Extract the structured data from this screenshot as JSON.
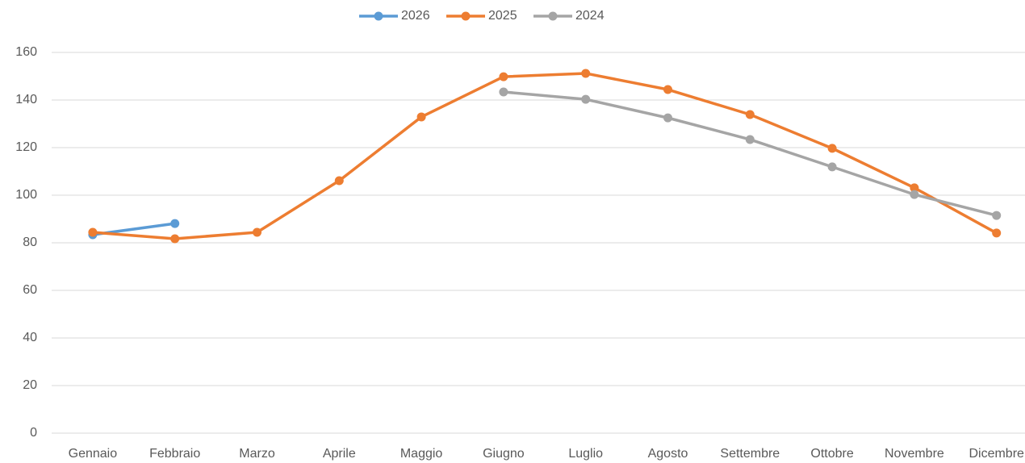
{
  "chart_data": {
    "type": "line",
    "categories": [
      "Gennaio",
      "Febbraio",
      "Marzo",
      "Aprile",
      "Maggio",
      "Giugno",
      "Luglio",
      "Agosto",
      "Settembre",
      "Ottobre",
      "Novembre",
      "Dicembre"
    ],
    "series": [
      {
        "name": "2026",
        "color": "#5b9bd5",
        "values": [
          83.4,
          88.1,
          null,
          null,
          null,
          null,
          null,
          null,
          null,
          null,
          null,
          null
        ]
      },
      {
        "name": "2025",
        "color": "#ed7d31",
        "values": [
          84.4,
          81.7,
          84.4,
          106.1,
          132.9,
          149.8,
          151.2,
          144.4,
          133.9,
          119.7,
          103.1,
          84.1
        ]
      },
      {
        "name": "2024",
        "color": "#a5a5a5",
        "values": [
          null,
          null,
          null,
          null,
          null,
          143.4,
          140.3,
          132.5,
          123.4,
          111.9,
          100.3,
          91.5
        ]
      }
    ],
    "ylim": [
      0,
      160
    ],
    "yticks": [
      0,
      20,
      40,
      60,
      80,
      100,
      120,
      140,
      160
    ],
    "grid": true,
    "legend": "top"
  }
}
